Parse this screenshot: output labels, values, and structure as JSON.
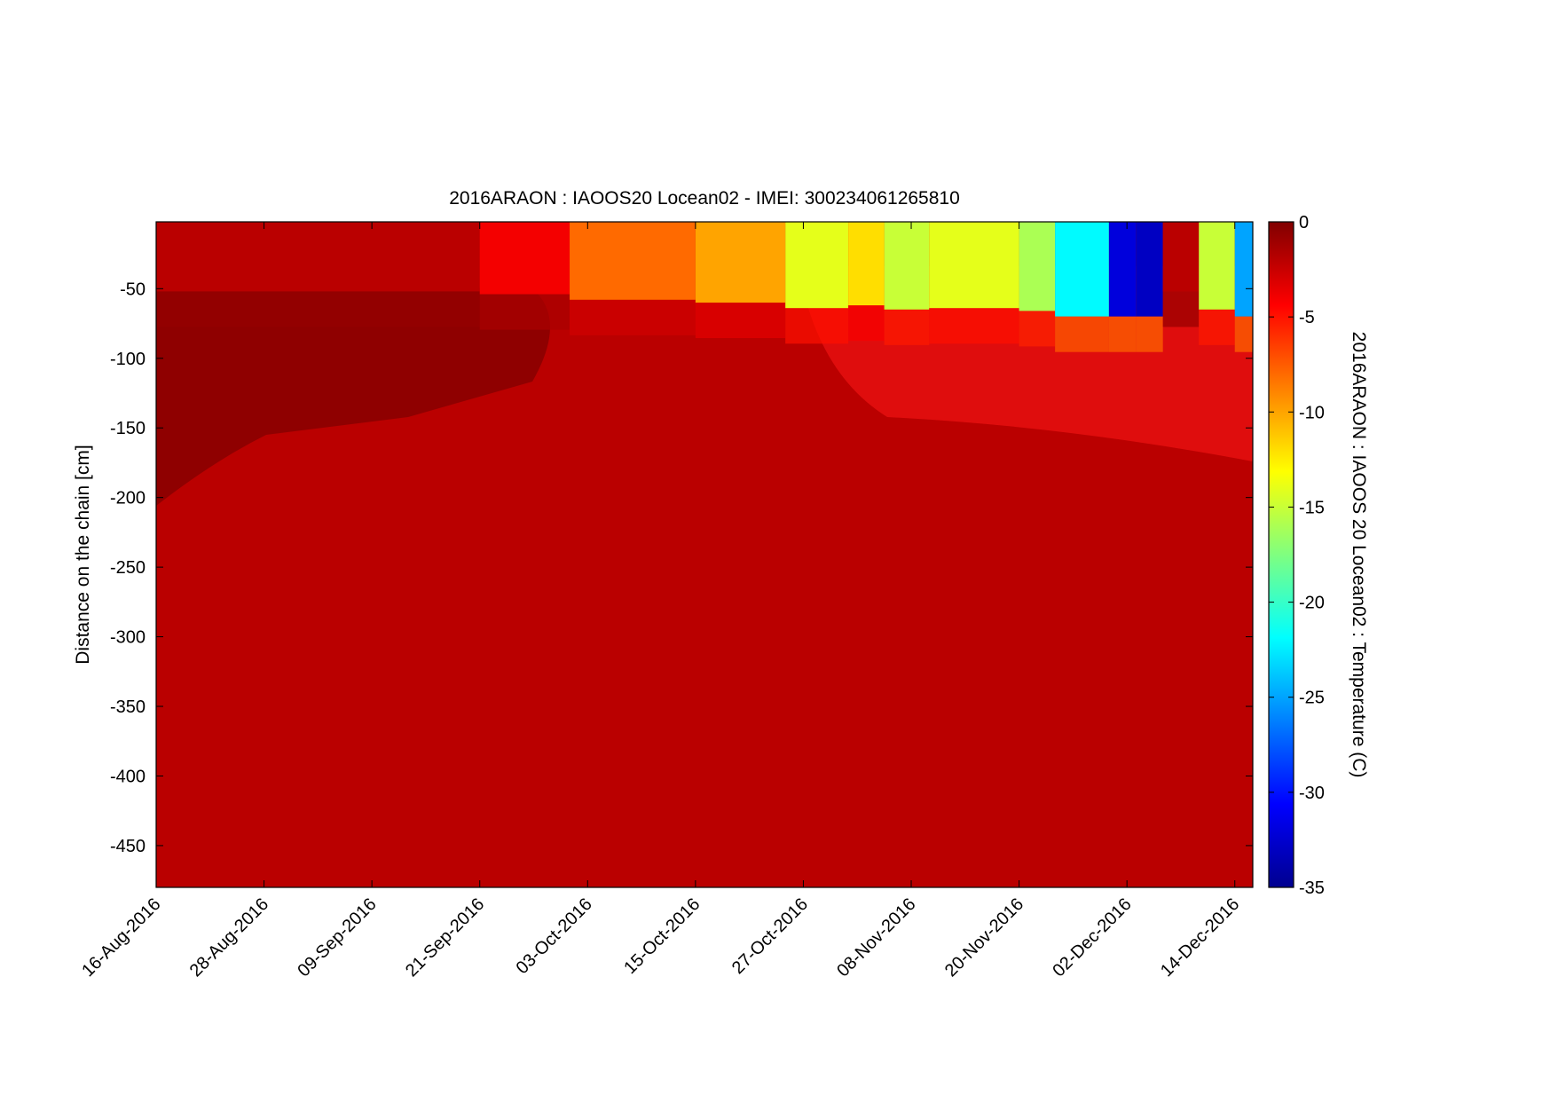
{
  "chart_data": {
    "type": "heatmap",
    "title": "2016ARAON : IAOOS20  Locean02 - IMEI: 300234061265810",
    "xlabel": "",
    "ylabel": "Distance on the chain [cm]",
    "x_ticks": [
      "16-Aug-2016",
      "28-Aug-2016",
      "09-Sep-2016",
      "21-Sep-2016",
      "03-Oct-2016",
      "15-Oct-2016",
      "27-Oct-2016",
      "08-Nov-2016",
      "20-Nov-2016",
      "02-Dec-2016",
      "14-Dec-2016"
    ],
    "xlim": [
      "2016-08-16",
      "2016-12-16"
    ],
    "y_ticks": [
      -50,
      -100,
      -150,
      -200,
      -250,
      -300,
      -350,
      -400,
      -450
    ],
    "ylim": [
      -480,
      -2
    ],
    "colorbar": {
      "label": "2016ARAON : IAOOS 20  Locean02 : Temperature (C)",
      "ticks": [
        0,
        -5,
        -10,
        -15,
        -20,
        -25,
        -30,
        -35
      ],
      "range": [
        -35,
        0
      ],
      "colormap": "jet"
    },
    "surface_events": [
      {
        "date": "2016-08-16",
        "temperature": -2
      },
      {
        "date": "2016-09-21",
        "temperature": -4
      },
      {
        "date": "2016-10-01",
        "temperature": -8
      },
      {
        "date": "2016-10-15",
        "temperature": -10
      },
      {
        "date": "2016-10-25",
        "temperature": -14
      },
      {
        "date": "2016-11-01",
        "temperature": -12
      },
      {
        "date": "2016-11-05",
        "temperature": -15
      },
      {
        "date": "2016-11-10",
        "temperature": -14
      },
      {
        "date": "2016-11-20",
        "temperature": -16
      },
      {
        "date": "2016-11-24",
        "temperature": -22
      },
      {
        "date": "2016-11-30",
        "temperature": -32
      },
      {
        "date": "2016-12-03",
        "temperature": -33
      },
      {
        "date": "2016-12-06",
        "temperature": -2
      },
      {
        "date": "2016-12-10",
        "temperature": -15
      },
      {
        "date": "2016-12-14",
        "temperature": -25
      }
    ],
    "deep_temperature": -2
  }
}
